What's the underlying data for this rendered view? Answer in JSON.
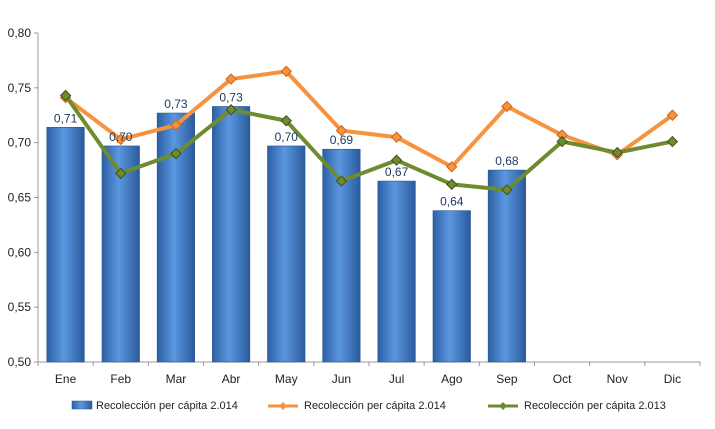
{
  "chart_data": {
    "type": "bar",
    "categories": [
      "Ene",
      "Feb",
      "Mar",
      "Abr",
      "May",
      "Jun",
      "Jul",
      "Ago",
      "Sep",
      "Oct",
      "Nov",
      "Dic"
    ],
    "y_ticks": [
      "0,50",
      "0,55",
      "0,60",
      "0,65",
      "0,70",
      "0,75",
      "0,80"
    ],
    "ylim": [
      0.5,
      0.8
    ],
    "grid": false,
    "legend_position": "bottom",
    "bar_series": {
      "name": "Recolección per cápita 2.014",
      "values": [
        0.714,
        0.697,
        0.727,
        0.733,
        0.697,
        0.694,
        0.665,
        0.638,
        0.675,
        null,
        null,
        null
      ],
      "labels": [
        "0,71",
        "0,70",
        "0,73",
        "0,73",
        "0,70",
        "0,69",
        "0,67",
        "0,64",
        "0,68",
        "",
        "",
        ""
      ],
      "color": "#3a78c9"
    },
    "line_series": [
      {
        "name": "Recolección per cápita 2.014",
        "type": "line",
        "values": [
          0.741,
          0.703,
          0.716,
          0.758,
          0.765,
          0.711,
          0.705,
          0.678,
          0.733,
          0.707,
          0.689,
          0.725
        ],
        "color": "#f7933e"
      },
      {
        "name": "Recolección per cápita 2.013",
        "type": "line",
        "values": [
          0.743,
          0.672,
          0.69,
          0.73,
          0.72,
          0.665,
          0.684,
          0.662,
          0.657,
          0.701,
          0.691,
          0.701
        ],
        "color": "#6e8c2f"
      }
    ]
  }
}
